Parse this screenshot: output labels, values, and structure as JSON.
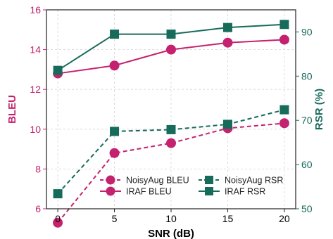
{
  "chart_data": {
    "type": "line",
    "x": [
      0,
      5,
      10,
      15,
      20
    ],
    "xlabel": "SNR (dB)",
    "xticks": [
      "0",
      "5",
      "10",
      "15",
      "20"
    ],
    "xlim": [
      -1,
      21
    ],
    "left_axis": {
      "label": "BLEU",
      "ylim": [
        6,
        16
      ],
      "ticks": [
        "6",
        "8",
        "10",
        "12",
        "14",
        "16"
      ],
      "color": "#c4226f"
    },
    "right_axis": {
      "label": "RSR (%)",
      "ylim": [
        50,
        95
      ],
      "ticks": [
        "50",
        "60",
        "70",
        "80",
        "90"
      ],
      "color": "#176b5b"
    },
    "grid": true,
    "legend_position": "lower-right",
    "series": [
      {
        "name": "NoisyAug BLEU",
        "axis": "left",
        "values": [
          5.3,
          8.8,
          9.3,
          10.05,
          10.3
        ],
        "marker": "circle",
        "linestyle": "dashed",
        "color": "#c4226f"
      },
      {
        "name": "IRAF BLEU",
        "axis": "left",
        "values": [
          12.8,
          13.2,
          14.0,
          14.35,
          14.5
        ],
        "marker": "circle",
        "linestyle": "solid",
        "color": "#c4226f"
      },
      {
        "name": "NoisyAug RSR",
        "axis": "right",
        "values": [
          53.4,
          67.5,
          67.9,
          69.1,
          72.4
        ],
        "marker": "square",
        "linestyle": "dashed",
        "color": "#176b5b"
      },
      {
        "name": "IRAF RSR",
        "axis": "right",
        "values": [
          81.3,
          89.5,
          89.5,
          91.0,
          91.7
        ],
        "marker": "square",
        "linestyle": "solid",
        "color": "#176b5b"
      }
    ]
  }
}
